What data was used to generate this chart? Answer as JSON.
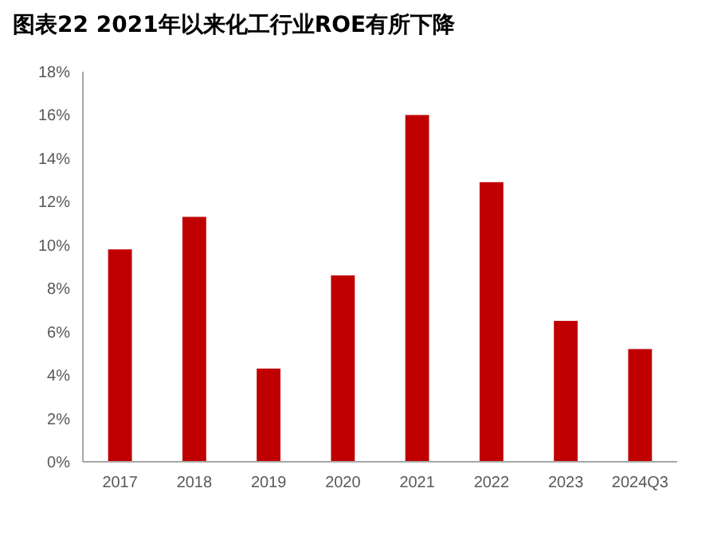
{
  "chart_data": {
    "type": "bar",
    "title": "图表22 2021年以来化工行业ROE有所下降",
    "categories": [
      "2017",
      "2018",
      "2019",
      "2020",
      "2021",
      "2022",
      "2023",
      "2024Q3"
    ],
    "values": [
      9.8,
      11.3,
      4.3,
      8.6,
      16.0,
      12.9,
      6.5,
      5.2
    ],
    "color": "#c00000",
    "ylim": [
      0,
      18
    ],
    "yticks": [
      {
        "value": 0,
        "label": "0%"
      },
      {
        "value": 2,
        "label": "2%"
      },
      {
        "value": 4,
        "label": "4%"
      },
      {
        "value": 6,
        "label": "6%"
      },
      {
        "value": 8,
        "label": "8%"
      },
      {
        "value": 10,
        "label": "10%"
      },
      {
        "value": 12,
        "label": "12%"
      },
      {
        "value": 14,
        "label": "14%"
      },
      {
        "value": 16,
        "label": "16%"
      },
      {
        "value": 18,
        "label": "18%"
      }
    ]
  }
}
